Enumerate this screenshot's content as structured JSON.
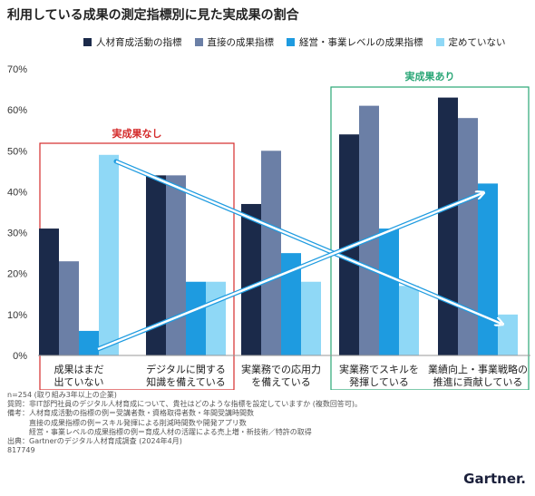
{
  "title": "利用している成果の測定指標別に見た実成果の割合",
  "colors": {
    "series": [
      "#1b2a4a",
      "#6b7fa6",
      "#1e9be0",
      "#8fd8f6"
    ],
    "red_box": "#d42b2b",
    "green_box": "#2aa676",
    "arrow": "#1e9be0"
  },
  "box_labels": {
    "no_result": "実成果なし",
    "has_result": "実成果あり"
  },
  "chart_data": {
    "type": "bar",
    "categories": [
      [
        "成果はまだ",
        "出ていない"
      ],
      [
        "デジタルに関する",
        "知識を備えている"
      ],
      [
        "実業務での応用力",
        "を備えている"
      ],
      [
        "実業務でスキルを",
        "発揮している"
      ],
      [
        "業績向上・事業戦略の",
        "推進に貢献している"
      ]
    ],
    "series": [
      {
        "name": "人材育成活動の指標",
        "values": [
          31,
          44,
          37,
          54,
          63
        ]
      },
      {
        "name": "直接の成果指標",
        "values": [
          23,
          44,
          50,
          61,
          58
        ]
      },
      {
        "name": "経営・事業レベルの成果指標",
        "values": [
          6,
          18,
          25,
          31,
          42
        ]
      },
      {
        "name": "定めていない",
        "values": [
          49,
          18,
          18,
          17,
          10
        ]
      }
    ],
    "ylim": [
      0,
      70
    ],
    "yticks": [
      "0%",
      "10%",
      "20%",
      "30%",
      "40%",
      "50%",
      "60%",
      "70%"
    ],
    "grid": false,
    "legend": "top"
  },
  "footnote": [
    "n=254 (取り組み3年以上の企業)",
    "質問：非IT部門社員のデジタル人材育成について、貴社はどのような指標を設定していますか (複数回答可)。",
    "備考：人材育成活動の指標の例＝受講者数・資格取得者数・年間受講時間数",
    "　　　直接の成果指標の例＝スキル発揮による削減時間数や開発アプリ数",
    "　　　経営・事業レベルの成果指標の例＝育成人材の活躍による売上増・新技術／特許の取得",
    "出典：Gartnerのデジタル人材育成調査 (2024年4月)",
    "817749"
  ],
  "logo": "Gartner"
}
